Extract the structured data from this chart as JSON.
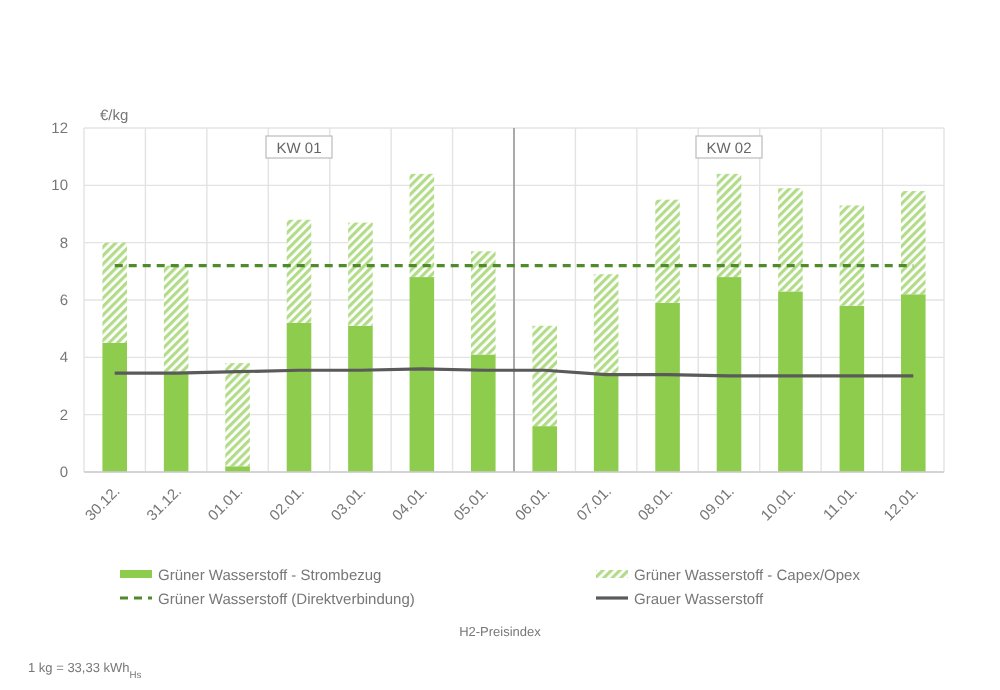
{
  "chart_data": {
    "type": "bar",
    "stacked": true,
    "ylabel": "€/kg",
    "categories": [
      "30.12.",
      "31.12.",
      "01.01.",
      "02.01.",
      "03.01.",
      "04.01.",
      "05.01.",
      "06.01.",
      "07.01.",
      "08.01.",
      "09.01.",
      "10.01.",
      "11.01.",
      "12.01."
    ],
    "series": [
      {
        "name": "Grüner Wasserstoff - Strombezug",
        "color": "#8dcc4c",
        "values": [
          4.5,
          3.5,
          0.2,
          5.2,
          5.1,
          6.8,
          4.1,
          1.6,
          3.4,
          5.9,
          6.8,
          6.3,
          5.8,
          6.2
        ]
      },
      {
        "name": "Grüner Wasserstoff - Capex/Opex",
        "color": "#b3dc8a",
        "values": [
          3.5,
          3.7,
          3.6,
          3.6,
          3.6,
          3.6,
          3.6,
          3.5,
          3.5,
          3.6,
          3.6,
          3.6,
          3.5,
          3.6
        ]
      },
      {
        "name": "Grüner Wasserstoff (Direktverbindung)",
        "type": "line",
        "line_style": "dashed",
        "color": "#4f8a2b",
        "values": [
          7.2,
          7.2,
          7.2,
          7.2,
          7.2,
          7.2,
          7.2,
          7.2,
          7.2,
          7.2,
          7.2,
          7.2,
          7.2,
          7.2
        ]
      },
      {
        "name": "Grauer Wasserstoff",
        "type": "line",
        "line_style": "solid",
        "color": "#5a5a5a",
        "values": [
          3.45,
          3.45,
          3.5,
          3.55,
          3.55,
          3.6,
          3.55,
          3.55,
          3.4,
          3.4,
          3.35,
          3.35,
          3.35,
          3.35
        ]
      }
    ],
    "ylim": [
      0,
      12
    ],
    "yticks": [
      0,
      2,
      4,
      6,
      8,
      10,
      12
    ],
    "grid": true,
    "legend": "bottom",
    "marker": "none",
    "ref_lines": [
      {
        "axis": "x",
        "value": "06.01.",
        "color": "#9a9a9a"
      }
    ],
    "annotations": [
      "KW 01",
      "KW 02",
      "H2-Preisindex",
      "1 kg = 33,33 kWh$_{Hs}$"
    ]
  }
}
